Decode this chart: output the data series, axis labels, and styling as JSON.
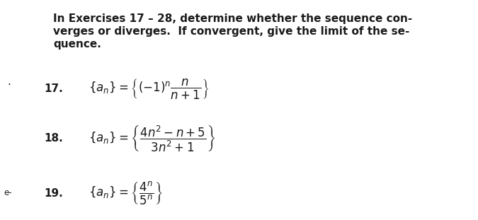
{
  "background_color": "#ffffff",
  "title_text_line1": "In Exercises 17 – 28, determine whether the sequence con-",
  "title_text_line2": "verges or diverges.  If convergent, give the limit of the se-",
  "title_text_line3": "quence.",
  "title_fontsize": 11.0,
  "eq17_label": "17.",
  "eq17_formula": "$\\{a_n\\} = \\left\\{(-1)^n\\dfrac{n}{n+1}\\right\\}$",
  "eq18_label": "18.",
  "eq18_formula": "$\\{a_n\\} = \\left\\{\\dfrac{4n^2 - n + 5}{3n^2 + 1}\\right\\}$",
  "eq19_label": "19.",
  "eq19_formula": "$\\{a_n\\} = \\left\\{\\dfrac{4^n}{5^n}\\right\\}$",
  "label_fontsize": 11.0,
  "formula_fontsize": 12.0,
  "text_color": "#1a1a1a",
  "dot_text": ".",
  "elabel_text": "e-",
  "fig_width": 6.75,
  "fig_height": 3.11,
  "dpi": 100
}
